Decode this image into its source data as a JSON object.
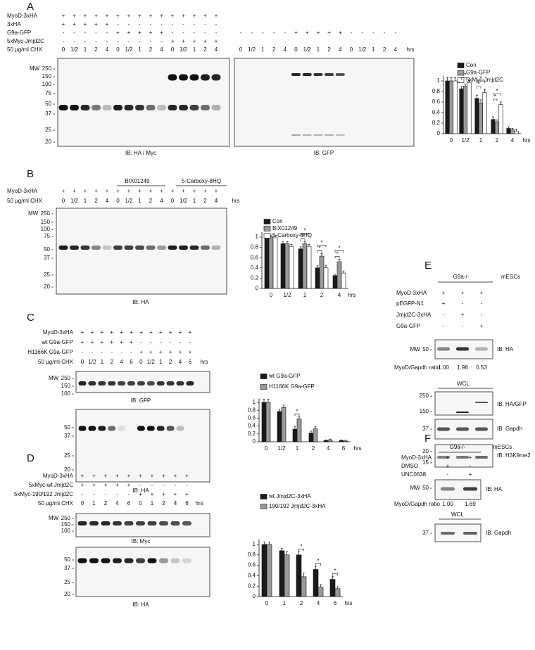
{
  "chart_data": [
    {
      "type": "bar",
      "categories": [
        "0",
        "1/2",
        "1",
        "2",
        "4"
      ],
      "x_label": "hrs",
      "ylim": [
        0,
        1.1
      ],
      "yticks": [
        0,
        0.2,
        0.4,
        0.6,
        0.8,
        1
      ],
      "series": [
        {
          "name": "Con",
          "color": "#1a1a1a",
          "values": [
            1,
            0.85,
            0.67,
            0.27,
            0.1
          ],
          "errors": [
            0.06,
            0.04,
            0.06,
            0.05,
            0.03
          ]
        },
        {
          "name": "G9a-GFP",
          "color": "#9a9a9a",
          "values": [
            1,
            0.9,
            0.58,
            0.22,
            0.07
          ],
          "errors": [
            0.06,
            0.04,
            0.06,
            0.04,
            0.03
          ]
        },
        {
          "name": "5xMyc-Jmjd2C",
          "color": "#ffffff",
          "values": [
            1,
            0.97,
            0.78,
            0.55,
            0.05
          ],
          "errors": [
            0.06,
            0.04,
            0.06,
            0.05,
            0.03
          ]
        }
      ],
      "significance": [
        [],
        [
          "*"
        ],
        [
          "*",
          "*"
        ],
        [
          "*",
          "*"
        ],
        []
      ]
    },
    {
      "type": "bar",
      "categories": [
        "0",
        "1/2",
        "1",
        "2",
        "4"
      ],
      "x_label": "hrs",
      "ylim": [
        0,
        1.1
      ],
      "yticks": [
        0,
        0.2,
        0.4,
        0.6,
        0.8,
        1
      ],
      "series": [
        {
          "name": "Con",
          "color": "#1a1a1a",
          "values": [
            1,
            0.87,
            0.77,
            0.4,
            0.25
          ],
          "errors": [
            0.04,
            0.04,
            0.04,
            0.04,
            0.03
          ]
        },
        {
          "name": "BIX01249",
          "color": "#9a9a9a",
          "values": [
            1,
            0.87,
            0.87,
            0.63,
            0.52
          ],
          "errors": [
            0.04,
            0.04,
            0.04,
            0.05,
            0.05
          ]
        },
        {
          "name": "5-Carboxy-8HQ",
          "color": "#ffffff",
          "values": [
            1,
            0.82,
            0.82,
            0.4,
            0.3
          ],
          "errors": [
            0.04,
            0.04,
            0.04,
            0.05,
            0.04
          ]
        }
      ],
      "significance": [
        [],
        [],
        [
          "*",
          "*"
        ],
        [
          "*",
          "*"
        ],
        [
          "*",
          "*"
        ]
      ]
    },
    {
      "type": "bar",
      "categories": [
        "0",
        "1/2",
        "1",
        "2",
        "4",
        "6"
      ],
      "x_label": "hrs",
      "ylim": [
        0,
        1.1
      ],
      "yticks": [
        0,
        0.2,
        0.4,
        0.6,
        0.8,
        1
      ],
      "series": [
        {
          "name": "wt G9a-GFP",
          "color": "#1a1a1a",
          "values": [
            1,
            0.77,
            0.32,
            0.22,
            0.03,
            0.03
          ],
          "errors": [
            0.08,
            0.06,
            0.07,
            0.05,
            0.02,
            0.02
          ]
        },
        {
          "name": "H1166K G9a-GFP",
          "color": "#9a9a9a",
          "values": [
            1,
            0.87,
            0.58,
            0.33,
            0.05,
            0.02
          ],
          "errors": [
            0.08,
            0.06,
            0.06,
            0.06,
            0.02,
            0.02
          ]
        }
      ],
      "significance": [
        [],
        [],
        [
          "*"
        ],
        [],
        [],
        []
      ]
    },
    {
      "type": "bar",
      "categories": [
        "0",
        "1",
        "2",
        "4",
        "6"
      ],
      "x_label": "hrs",
      "ylim": [
        0,
        1.1
      ],
      "yticks": [
        0,
        0.2,
        0.4,
        0.6,
        0.8,
        1
      ],
      "series": [
        {
          "name": "wt Jmjd2C-3xHA",
          "color": "#1a1a1a",
          "values": [
            1,
            0.88,
            0.8,
            0.52,
            0.33
          ],
          "errors": [
            0.05,
            0.05,
            0.06,
            0.06,
            0.06
          ]
        },
        {
          "name": "190/192 Jmjd2C-3xHA",
          "color": "#9a9a9a",
          "values": [
            1,
            0.8,
            0.38,
            0.18,
            0.15
          ],
          "errors": [
            0.05,
            0.06,
            0.07,
            0.05,
            0.04
          ]
        }
      ],
      "significance": [
        [],
        [],
        [
          "*"
        ],
        [
          "*"
        ],
        [
          "*"
        ]
      ]
    }
  ],
  "panels": {
    "A": {
      "label": "A",
      "chx_unit": "hrs",
      "rows": [
        {
          "name": "MyoD-3xHA",
          "lanes": [
            "+",
            "+",
            "+",
            "+",
            "+",
            "+",
            "+",
            "+",
            "+",
            "+",
            "+",
            "+",
            "+",
            "+",
            "+"
          ]
        },
        {
          "name": "3xHA",
          "lanes": [
            "+",
            "+",
            "+",
            "+",
            "+",
            "-",
            "-",
            "-",
            "-",
            "-",
            "-",
            "-",
            "-",
            "-",
            "-"
          ]
        },
        {
          "name": "G9a-GFP",
          "lanes": [
            "-",
            "-",
            "-",
            "-",
            "-",
            "+",
            "+",
            "+",
            "+",
            "+",
            "-",
            "-",
            "-",
            "-",
            "-"
          ]
        },
        {
          "name": "5xMyc-Jmjd2C",
          "lanes": [
            "-",
            "-",
            "-",
            "-",
            "-",
            "-",
            "-",
            "-",
            "-",
            "-",
            "+",
            "+",
            "+",
            "+",
            "+"
          ]
        },
        {
          "name": "50 µg/ml CHX",
          "lanes": [
            "0",
            "1/2",
            "1",
            "2",
            "4",
            "0",
            "1/2",
            "1",
            "2",
            "4",
            "0",
            "1/2",
            "1",
            "2",
            "4"
          ]
        }
      ],
      "right_rows": [
        {
          "lanes": [
            "-",
            "-",
            "-",
            "-",
            "-",
            "+",
            "+",
            "+",
            "+",
            "+",
            "-",
            "-",
            "-",
            "-",
            "-"
          ]
        },
        {
          "lanes": [
            "0",
            "1/2",
            "1",
            "2",
            "4",
            "0",
            "1/2",
            "1",
            "2",
            "4",
            "0",
            "1/2",
            "1",
            "2",
            "4"
          ]
        }
      ],
      "blots": [
        {
          "mw": "MW",
          "markers": [
            250,
            150,
            100,
            75,
            50,
            37,
            25,
            20
          ],
          "ib": "IB: HA / Myc"
        },
        {
          "ib": "IB: GFP"
        }
      ]
    },
    "B": {
      "label": "B",
      "chx_unit": "hrs",
      "groups": [
        "BIX01249",
        "5-Carboxy-8HQ"
      ],
      "rows": [
        {
          "name": "MyoD-3xHA",
          "lanes": [
            "+",
            "+",
            "+",
            "+",
            "+",
            "+",
            "+",
            "+",
            "+",
            "+",
            "+",
            "+",
            "+",
            "+",
            "+"
          ]
        },
        {
          "name": "50 µg/ml CHX",
          "lanes": [
            "0",
            "1/2",
            "1",
            "2",
            "4",
            "0",
            "1/2",
            "1",
            "2",
            "4",
            "0",
            "1/2",
            "1",
            "2",
            "4"
          ]
        }
      ],
      "blots": [
        {
          "mw": "MW",
          "markers": [
            250,
            150,
            100,
            75,
            50,
            37,
            25,
            20
          ],
          "ib": "IB: HA"
        }
      ]
    },
    "C": {
      "label": "C",
      "chx_unit": "hrs",
      "rows": [
        {
          "name": "MyoD-3xHA",
          "lanes": [
            "+",
            "+",
            "+",
            "+",
            "+",
            "+",
            "+",
            "+",
            "+",
            "+",
            "+",
            "+"
          ]
        },
        {
          "name": "wt G9a-GFP",
          "lanes": [
            "+",
            "+",
            "+",
            "+",
            "+",
            "+",
            "-",
            "-",
            "-",
            "-",
            "-",
            "-"
          ]
        },
        {
          "name": "H1166K G9a-GFP",
          "lanes": [
            "-",
            "-",
            "-",
            "-",
            "-",
            "-",
            "+",
            "+",
            "+",
            "+",
            "+",
            "+"
          ]
        },
        {
          "name": "50 µg/ml CHX",
          "lanes": [
            "0",
            "1/2",
            "1",
            "2",
            "4",
            "6",
            "0",
            "1/2",
            "1",
            "2",
            "4",
            "6"
          ]
        }
      ],
      "blots": [
        {
          "mw": "MW",
          "markers": [
            250,
            150,
            100
          ],
          "ib": "IB: GFP"
        },
        {
          "markers": [
            50,
            37,
            25,
            20
          ],
          "ib": "IB: HA"
        }
      ]
    },
    "D": {
      "label": "D",
      "chx_unit": "hrs",
      "rows": [
        {
          "name": "MyoD-3xHA",
          "lanes": [
            "+",
            "+",
            "+",
            "+",
            "+",
            "+",
            "+",
            "+",
            "+",
            "+"
          ]
        },
        {
          "name": "5xMyc-wt Jmjd2C",
          "lanes": [
            "+",
            "+",
            "+",
            "+",
            "+",
            "-",
            "-",
            "-",
            "-",
            "-"
          ]
        },
        {
          "name": "5xMyc-190/192 Jmjd2C",
          "lanes": [
            "-",
            "-",
            "-",
            "-",
            "-",
            "+",
            "+",
            "+",
            "+",
            "+"
          ]
        },
        {
          "name": "50 µg/ml CHX",
          "lanes": [
            "0",
            "1",
            "2",
            "4",
            "6",
            "0",
            "1",
            "2",
            "4",
            "6"
          ]
        }
      ],
      "blots": [
        {
          "mw": "MW",
          "markers": [
            250,
            150,
            100
          ],
          "ib": "IB: Myc"
        },
        {
          "markers": [
            50,
            37,
            25,
            20
          ],
          "ib": "IB: HA"
        }
      ]
    },
    "E": {
      "label": "E",
      "genotype": "G9a-/-",
      "cells": "mESCs",
      "rows": [
        {
          "name": "MyoD-3xHA",
          "lanes": [
            "+",
            "+",
            "+"
          ]
        },
        {
          "name": "pEGFP-N1",
          "lanes": [
            "+",
            "-",
            "-"
          ]
        },
        {
          "name": "Jmjd2C-3xHA",
          "lanes": [
            "-",
            "+",
            "-"
          ]
        },
        {
          "name": "G9a-GFP",
          "lanes": [
            "-",
            "-",
            "+"
          ]
        }
      ],
      "ratio": {
        "name": "MyoD/Gapdh ratio",
        "values": [
          "1.00",
          "1.98",
          "0.53"
        ]
      },
      "wcl": "WCL",
      "blots": [
        {
          "mw": "MW",
          "markers": [
            50
          ],
          "ib": "IB: HA"
        },
        {
          "markers": [
            250,
            150
          ],
          "ib": "IB: HA/GFP"
        },
        {
          "markers": [
            37
          ],
          "ib": "IB: Gapdh"
        },
        {
          "markers": [
            20,
            15
          ],
          "ib": "IB: H3K9me2"
        }
      ]
    },
    "F": {
      "label": "F",
      "genotype": "G9a-/-",
      "cells": "mESCs",
      "rows": [
        {
          "name": "MyoD-3xHA",
          "lanes": [
            "+",
            "+"
          ]
        },
        {
          "name": "DMSO",
          "lanes": [
            "+",
            "-"
          ]
        },
        {
          "name": "UNC0638",
          "lanes": [
            "-",
            "+"
          ]
        }
      ],
      "ratio": {
        "name": "MyoD/Gapdh ratio",
        "values": [
          "1.00",
          "1.69"
        ]
      },
      "wcl": "WCL",
      "blots": [
        {
          "mw": "MW",
          "markers": [
            50
          ],
          "ib": "IB: HA"
        },
        {
          "markers": [
            37
          ],
          "ib": "IB: Gapdh"
        }
      ]
    }
  }
}
